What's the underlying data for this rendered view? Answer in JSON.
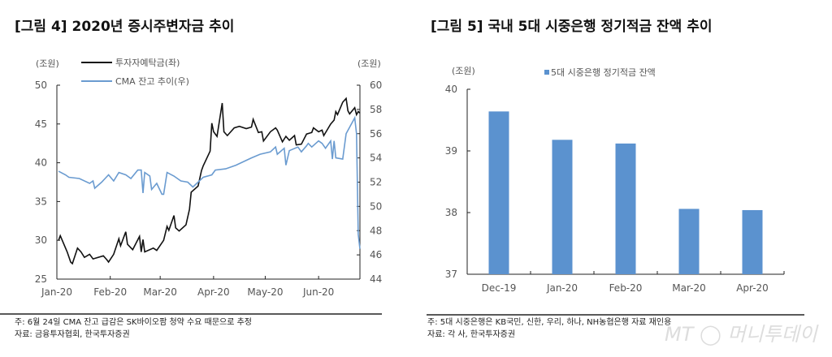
{
  "chart_data": [
    {
      "type": "line",
      "title": "[그림 4] 2020년 증시주변자금 추이",
      "left_unit": "(조원)",
      "right_unit": "(조원)",
      "ylim_left": [
        25,
        50
      ],
      "ylim_right": [
        44,
        60
      ],
      "left_ticks": [
        "25",
        "30",
        "35",
        "40",
        "45",
        "50"
      ],
      "right_ticks": [
        "44",
        "46",
        "48",
        "50",
        "52",
        "54",
        "56",
        "58",
        "60"
      ],
      "x_ticks": [
        "Jan-20",
        "Feb-20",
        "Mar-20",
        "Apr-20",
        "May-20",
        "Jun-20"
      ],
      "x_tick_dates": [
        "2020-01-01",
        "2020-02-01",
        "2020-03-01",
        "2020-04-01",
        "2020-05-01",
        "2020-06-01"
      ],
      "xlim": [
        "2020-01-01",
        "2020-06-25"
      ],
      "grid": false,
      "legend": "top-left",
      "series": [
        {
          "name": "투자자예탁금(좌)",
          "axis": "left",
          "color": "#111111",
          "points": [
            [
              "2020-01-02",
              30
            ],
            [
              "2020-01-03",
              30.6
            ],
            [
              "2020-01-07",
              28.5
            ],
            [
              "2020-01-09",
              27.2
            ],
            [
              "2020-01-10",
              27
            ],
            [
              "2020-01-13",
              29
            ],
            [
              "2020-01-15",
              28.5
            ],
            [
              "2020-01-17",
              27.8
            ],
            [
              "2020-01-20",
              28.2
            ],
            [
              "2020-01-22",
              27.6
            ],
            [
              "2020-01-28",
              28
            ],
            [
              "2020-01-30",
              27.5
            ],
            [
              "2020-01-31",
              27.2
            ],
            [
              "2020-02-03",
              28.2
            ],
            [
              "2020-02-06",
              30.2
            ],
            [
              "2020-02-07",
              29.3
            ],
            [
              "2020-02-10",
              31.1
            ],
            [
              "2020-02-11",
              29.5
            ],
            [
              "2020-02-14",
              28.8
            ],
            [
              "2020-02-18",
              30.5
            ],
            [
              "2020-02-19",
              28.5
            ],
            [
              "2020-02-20",
              30.1
            ],
            [
              "2020-02-21",
              28.5
            ],
            [
              "2020-02-26",
              29
            ],
            [
              "2020-02-28",
              28.7
            ],
            [
              "2020-03-03",
              30
            ],
            [
              "2020-03-05",
              31.8
            ],
            [
              "2020-03-06",
              31.3
            ],
            [
              "2020-03-09",
              33.2
            ],
            [
              "2020-03-10",
              31.6
            ],
            [
              "2020-03-12",
              31.2
            ],
            [
              "2020-03-16",
              32
            ],
            [
              "2020-03-18",
              34
            ],
            [
              "2020-03-19",
              36.2
            ],
            [
              "2020-03-23",
              37
            ],
            [
              "2020-03-25",
              39
            ],
            [
              "2020-03-26",
              39.6
            ],
            [
              "2020-03-30",
              41.5
            ],
            [
              "2020-03-31",
              45.1
            ],
            [
              "2020-04-01",
              44
            ],
            [
              "2020-04-03",
              43.4
            ],
            [
              "2020-04-06",
              47.7
            ],
            [
              "2020-04-07",
              44
            ],
            [
              "2020-04-09",
              43.5
            ],
            [
              "2020-04-13",
              44.5
            ],
            [
              "2020-04-16",
              44.7
            ],
            [
              "2020-04-20",
              44.4
            ],
            [
              "2020-04-23",
              44.6
            ],
            [
              "2020-04-24",
              45.6
            ],
            [
              "2020-04-27",
              43.9
            ],
            [
              "2020-04-29",
              44
            ],
            [
              "2020-04-30",
              42.8
            ],
            [
              "2020-05-04",
              44
            ],
            [
              "2020-05-07",
              44.5
            ],
            [
              "2020-05-08",
              44.2
            ],
            [
              "2020-05-11",
              42.7
            ],
            [
              "2020-05-13",
              43.4
            ],
            [
              "2020-05-15",
              42.9
            ],
            [
              "2020-05-18",
              43.5
            ],
            [
              "2020-05-19",
              42.3
            ],
            [
              "2020-05-22",
              42.4
            ],
            [
              "2020-05-25",
              43.7
            ],
            [
              "2020-05-28",
              43.9
            ],
            [
              "2020-05-29",
              44.5
            ],
            [
              "2020-06-01",
              44
            ],
            [
              "2020-06-03",
              44.2
            ],
            [
              "2020-06-04",
              43.5
            ],
            [
              "2020-06-08",
              45
            ],
            [
              "2020-06-10",
              45.5
            ],
            [
              "2020-06-11",
              46.6
            ],
            [
              "2020-06-12",
              46.2
            ],
            [
              "2020-06-15",
              47.8
            ],
            [
              "2020-06-17",
              48.3
            ],
            [
              "2020-06-18",
              46.7
            ],
            [
              "2020-06-19",
              46.3
            ],
            [
              "2020-06-22",
              47.1
            ],
            [
              "2020-06-23",
              46.2
            ],
            [
              "2020-06-24",
              46.6
            ],
            [
              "2020-06-25",
              46.4
            ]
          ]
        },
        {
          "name": "CMA 잔고 추이(우)",
          "axis": "right",
          "color": "#6a9bd0",
          "points": [
            [
              "2020-01-02",
              52.9
            ],
            [
              "2020-01-06",
              52.6
            ],
            [
              "2020-01-08",
              52.4
            ],
            [
              "2020-01-14",
              52.3
            ],
            [
              "2020-01-20",
              51.9
            ],
            [
              "2020-01-22",
              52.1
            ],
            [
              "2020-01-23",
              51.5
            ],
            [
              "2020-01-27",
              52.0
            ],
            [
              "2020-01-31",
              52.6
            ],
            [
              "2020-02-03",
              52.1
            ],
            [
              "2020-02-06",
              52.8
            ],
            [
              "2020-02-10",
              52.6
            ],
            [
              "2020-02-13",
              52.3
            ],
            [
              "2020-02-17",
              53.0
            ],
            [
              "2020-02-19",
              53.0
            ],
            [
              "2020-02-20",
              51.1
            ],
            [
              "2020-02-21",
              52.8
            ],
            [
              "2020-02-24",
              52.5
            ],
            [
              "2020-02-25",
              51.4
            ],
            [
              "2020-02-28",
              51.9
            ],
            [
              "2020-03-02",
              51.0
            ],
            [
              "2020-03-03",
              51.0
            ],
            [
              "2020-03-05",
              52.8
            ],
            [
              "2020-03-09",
              52.5
            ],
            [
              "2020-03-13",
              52.1
            ],
            [
              "2020-03-17",
              52.0
            ],
            [
              "2020-03-20",
              51.6
            ],
            [
              "2020-03-23",
              52.0
            ],
            [
              "2020-03-26",
              52.4
            ],
            [
              "2020-03-31",
              52.6
            ],
            [
              "2020-04-02",
              53.0
            ],
            [
              "2020-04-08",
              53.1
            ],
            [
              "2020-04-14",
              53.4
            ],
            [
              "2020-04-20",
              53.8
            ],
            [
              "2020-04-23",
              54.0
            ],
            [
              "2020-04-28",
              54.3
            ],
            [
              "2020-05-04",
              54.5
            ],
            [
              "2020-05-07",
              54.9
            ],
            [
              "2020-05-08",
              54.3
            ],
            [
              "2020-05-12",
              54.8
            ],
            [
              "2020-05-13",
              53.4
            ],
            [
              "2020-05-15",
              54.6
            ],
            [
              "2020-05-20",
              54.9
            ],
            [
              "2020-05-22",
              54.5
            ],
            [
              "2020-05-25",
              55.0
            ],
            [
              "2020-05-26",
              55.2
            ],
            [
              "2020-05-28",
              54.9
            ],
            [
              "2020-06-01",
              55.4
            ],
            [
              "2020-06-03",
              55.2
            ],
            [
              "2020-06-05",
              54.8
            ],
            [
              "2020-06-08",
              55.4
            ],
            [
              "2020-06-09",
              53.9
            ],
            [
              "2020-06-10",
              55.4
            ],
            [
              "2020-06-11",
              54.0
            ],
            [
              "2020-06-15",
              53.9
            ],
            [
              "2020-06-17",
              56.0
            ],
            [
              "2020-06-22",
              57.3
            ],
            [
              "2020-06-23",
              56.0
            ],
            [
              "2020-06-24",
              47.7
            ],
            [
              "2020-06-25",
              46.5
            ]
          ]
        }
      ],
      "footnotes": [
        "주: 6월 24일 CMA 잔고 급감은 SK바이오팜 청약 수요 때문으로 추정",
        "자료: 금융투자협회, 한국투자증권"
      ]
    },
    {
      "type": "bar",
      "title": "[그림 5] 국내 5대 시중은행 정기적금 잔액 추이",
      "unit": "(조원)",
      "categories": [
        "Dec-19",
        "Jan-20",
        "Feb-20",
        "Mar-20",
        "Apr-20"
      ],
      "series": [
        {
          "name": "5대 시중은행 정기적금 잔액",
          "color": "#5b92cf",
          "values": [
            39.64,
            39.18,
            39.12,
            38.06,
            38.04
          ]
        }
      ],
      "ylim": [
        37,
        40
      ],
      "y_ticks": [
        "37",
        "38",
        "39",
        "40"
      ],
      "grid": false,
      "legend": "top",
      "footnotes": [
        "주: 5대 시중은행은 KB국민, 신한, 우리, 하나, NH농협은행 자료 재인용",
        "자료: 각 사, 한국투자증권"
      ]
    }
  ],
  "watermark": "MT 머니투데이"
}
